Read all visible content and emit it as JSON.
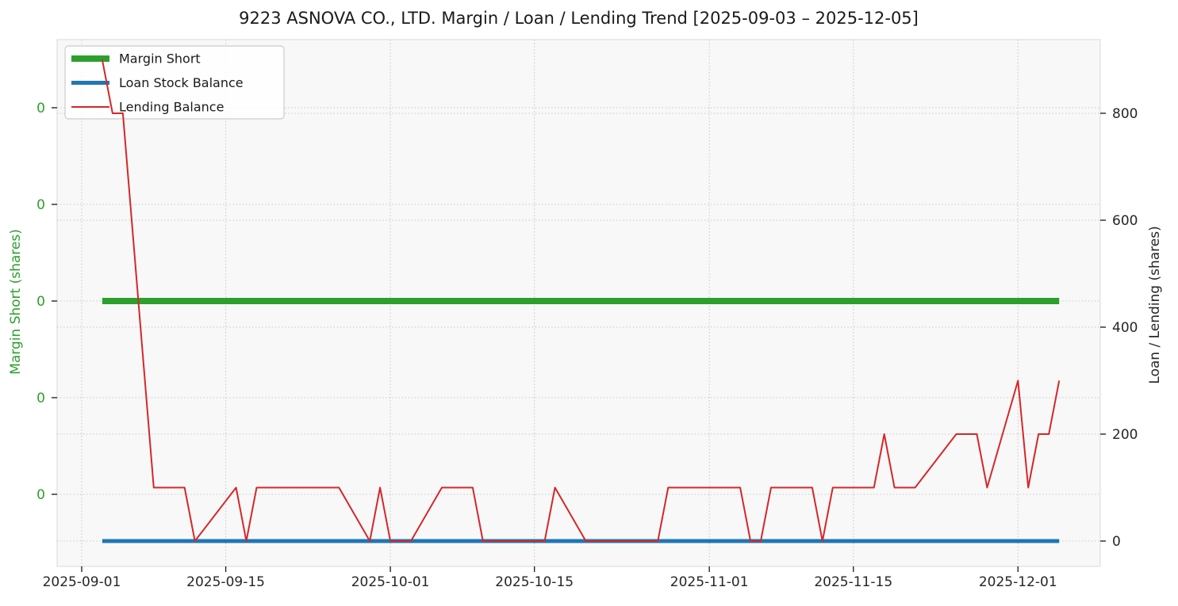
{
  "chart_data": {
    "type": "line",
    "title": "9223 ASNOVA CO., LTD. Margin / Loan / Lending Trend [2025-09-03 – 2025-12-05]",
    "date_range": [
      "2025-09-03",
      "2025-12-05"
    ],
    "x_axis": {
      "tick_labels": [
        "2025-09-01",
        "2025-09-15",
        "2025-10-01",
        "2025-10-15",
        "2025-11-01",
        "2025-11-15",
        "2025-12-01"
      ]
    },
    "left_axis": {
      "label": "Margin Short (shares)",
      "tick_labels": [
        "0",
        "0",
        "0",
        "0",
        "0"
      ],
      "color": "#2ca02c"
    },
    "right_axis": {
      "label": "Loan / Lending (shares)",
      "ticks": [
        0,
        200,
        400,
        600,
        800
      ],
      "color": "#262626"
    },
    "grid": "dotted",
    "legend_position": "upper-left",
    "series": [
      {
        "name": "Margin Short",
        "color": "#2ca02c",
        "axis": "left",
        "line_width": 8,
        "points": [
          [
            "2025-09-03",
            0
          ],
          [
            "2025-12-05",
            0
          ]
        ]
      },
      {
        "name": "Loan Stock Balance",
        "color": "#1f77b4",
        "axis": "right",
        "line_width": 5,
        "points": [
          [
            "2025-09-03",
            0
          ],
          [
            "2025-12-05",
            0
          ]
        ]
      },
      {
        "name": "Lending Balance",
        "color": "#d62728",
        "axis": "right",
        "line_width": 2,
        "points": [
          [
            "2025-09-03",
            900
          ],
          [
            "2025-09-04",
            800
          ],
          [
            "2025-09-05",
            800
          ],
          [
            "2025-09-08",
            100
          ],
          [
            "2025-09-09",
            100
          ],
          [
            "2025-09-10",
            100
          ],
          [
            "2025-09-11",
            100
          ],
          [
            "2025-09-12",
            0
          ],
          [
            "2025-09-16",
            100
          ],
          [
            "2025-09-17",
            0
          ],
          [
            "2025-09-18",
            100
          ],
          [
            "2025-09-19",
            100
          ],
          [
            "2025-09-22",
            100
          ],
          [
            "2025-09-24",
            100
          ],
          [
            "2025-09-25",
            100
          ],
          [
            "2025-09-26",
            100
          ],
          [
            "2025-09-29",
            0
          ],
          [
            "2025-09-30",
            100
          ],
          [
            "2025-10-01",
            0
          ],
          [
            "2025-10-02",
            0
          ],
          [
            "2025-10-03",
            0
          ],
          [
            "2025-10-06",
            100
          ],
          [
            "2025-10-07",
            100
          ],
          [
            "2025-10-08",
            100
          ],
          [
            "2025-10-09",
            100
          ],
          [
            "2025-10-10",
            0
          ],
          [
            "2025-10-14",
            0
          ],
          [
            "2025-10-15",
            0
          ],
          [
            "2025-10-16",
            0
          ],
          [
            "2025-10-17",
            100
          ],
          [
            "2025-10-20",
            0
          ],
          [
            "2025-10-21",
            0
          ],
          [
            "2025-10-22",
            0
          ],
          [
            "2025-10-23",
            0
          ],
          [
            "2025-10-24",
            0
          ],
          [
            "2025-10-27",
            0
          ],
          [
            "2025-10-28",
            100
          ],
          [
            "2025-10-29",
            100
          ],
          [
            "2025-10-30",
            100
          ],
          [
            "2025-10-31",
            100
          ],
          [
            "2025-11-04",
            100
          ],
          [
            "2025-11-05",
            0
          ],
          [
            "2025-11-06",
            0
          ],
          [
            "2025-11-07",
            100
          ],
          [
            "2025-11-10",
            100
          ],
          [
            "2025-11-11",
            100
          ],
          [
            "2025-11-12",
            0
          ],
          [
            "2025-11-13",
            100
          ],
          [
            "2025-11-14",
            100
          ],
          [
            "2025-11-17",
            100
          ],
          [
            "2025-11-18",
            200
          ],
          [
            "2025-11-19",
            100
          ],
          [
            "2025-11-20",
            100
          ],
          [
            "2025-11-21",
            100
          ],
          [
            "2025-11-25",
            200
          ],
          [
            "2025-11-26",
            200
          ],
          [
            "2025-11-27",
            200
          ],
          [
            "2025-11-28",
            100
          ],
          [
            "2025-12-01",
            300
          ],
          [
            "2025-12-02",
            100
          ],
          [
            "2025-12-03",
            200
          ],
          [
            "2025-12-04",
            200
          ],
          [
            "2025-12-05",
            300
          ]
        ]
      }
    ]
  }
}
